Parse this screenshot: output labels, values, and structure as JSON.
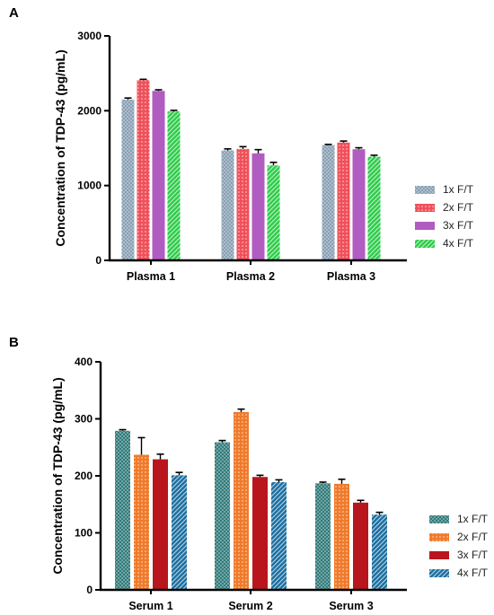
{
  "chart_data": [
    {
      "panel_label": "A",
      "type": "bar",
      "categories": [
        "Plasma 1",
        "Plasma 2",
        "Plasma 3"
      ],
      "ylabel": "Concentration of TDP-43 (pg/mL)",
      "xlabel": "",
      "ylim": [
        0,
        3000
      ],
      "yticks": [
        0,
        1000,
        2000,
        3000
      ],
      "grid": false,
      "legend_position": "right",
      "series": [
        {
          "name": "1x F/T",
          "color": "#7e97ad",
          "pattern": "crosshatch",
          "values": [
            2150,
            1470,
            1540
          ],
          "errors": [
            20,
            20,
            10
          ]
        },
        {
          "name": "2x F/T",
          "color": "#f0505a",
          "pattern": "dots",
          "values": [
            2410,
            1490,
            1575
          ],
          "errors": [
            10,
            30,
            20
          ]
        },
        {
          "name": "3x F/T",
          "color": "#b05cc0",
          "pattern": "solid",
          "values": [
            2265,
            1430,
            1485
          ],
          "errors": [
            15,
            50,
            20
          ]
        },
        {
          "name": "4x F/T",
          "color": "#2ecc4a",
          "pattern": "diagonal",
          "values": [
            1990,
            1270,
            1385
          ],
          "errors": [
            15,
            40,
            20
          ]
        }
      ]
    },
    {
      "panel_label": "B",
      "type": "bar",
      "categories": [
        "Serum 1",
        "Serum 2",
        "Serum 3"
      ],
      "ylabel": "Concentration of TDP-43 (pg/mL)",
      "xlabel": "",
      "ylim": [
        0,
        400
      ],
      "yticks": [
        0,
        100,
        200,
        300,
        400
      ],
      "grid": false,
      "legend_position": "right",
      "series": [
        {
          "name": "1x F/T",
          "color": "#1f6f6f",
          "pattern": "crosshatch",
          "values": [
            279,
            259,
            187
          ],
          "errors": [
            2,
            3,
            2
          ]
        },
        {
          "name": "2x F/T",
          "color": "#f07a2a",
          "pattern": "dots",
          "values": [
            237,
            312,
            186
          ],
          "errors": [
            30,
            5,
            8
          ]
        },
        {
          "name": "3x F/T",
          "color": "#b8161c",
          "pattern": "solid",
          "values": [
            229,
            198,
            153
          ],
          "errors": [
            9,
            3,
            4
          ]
        },
        {
          "name": "4x F/T",
          "color": "#1b6fa0",
          "pattern": "diagonal",
          "values": [
            201,
            189,
            132
          ],
          "errors": [
            5,
            4,
            4
          ]
        }
      ]
    }
  ]
}
